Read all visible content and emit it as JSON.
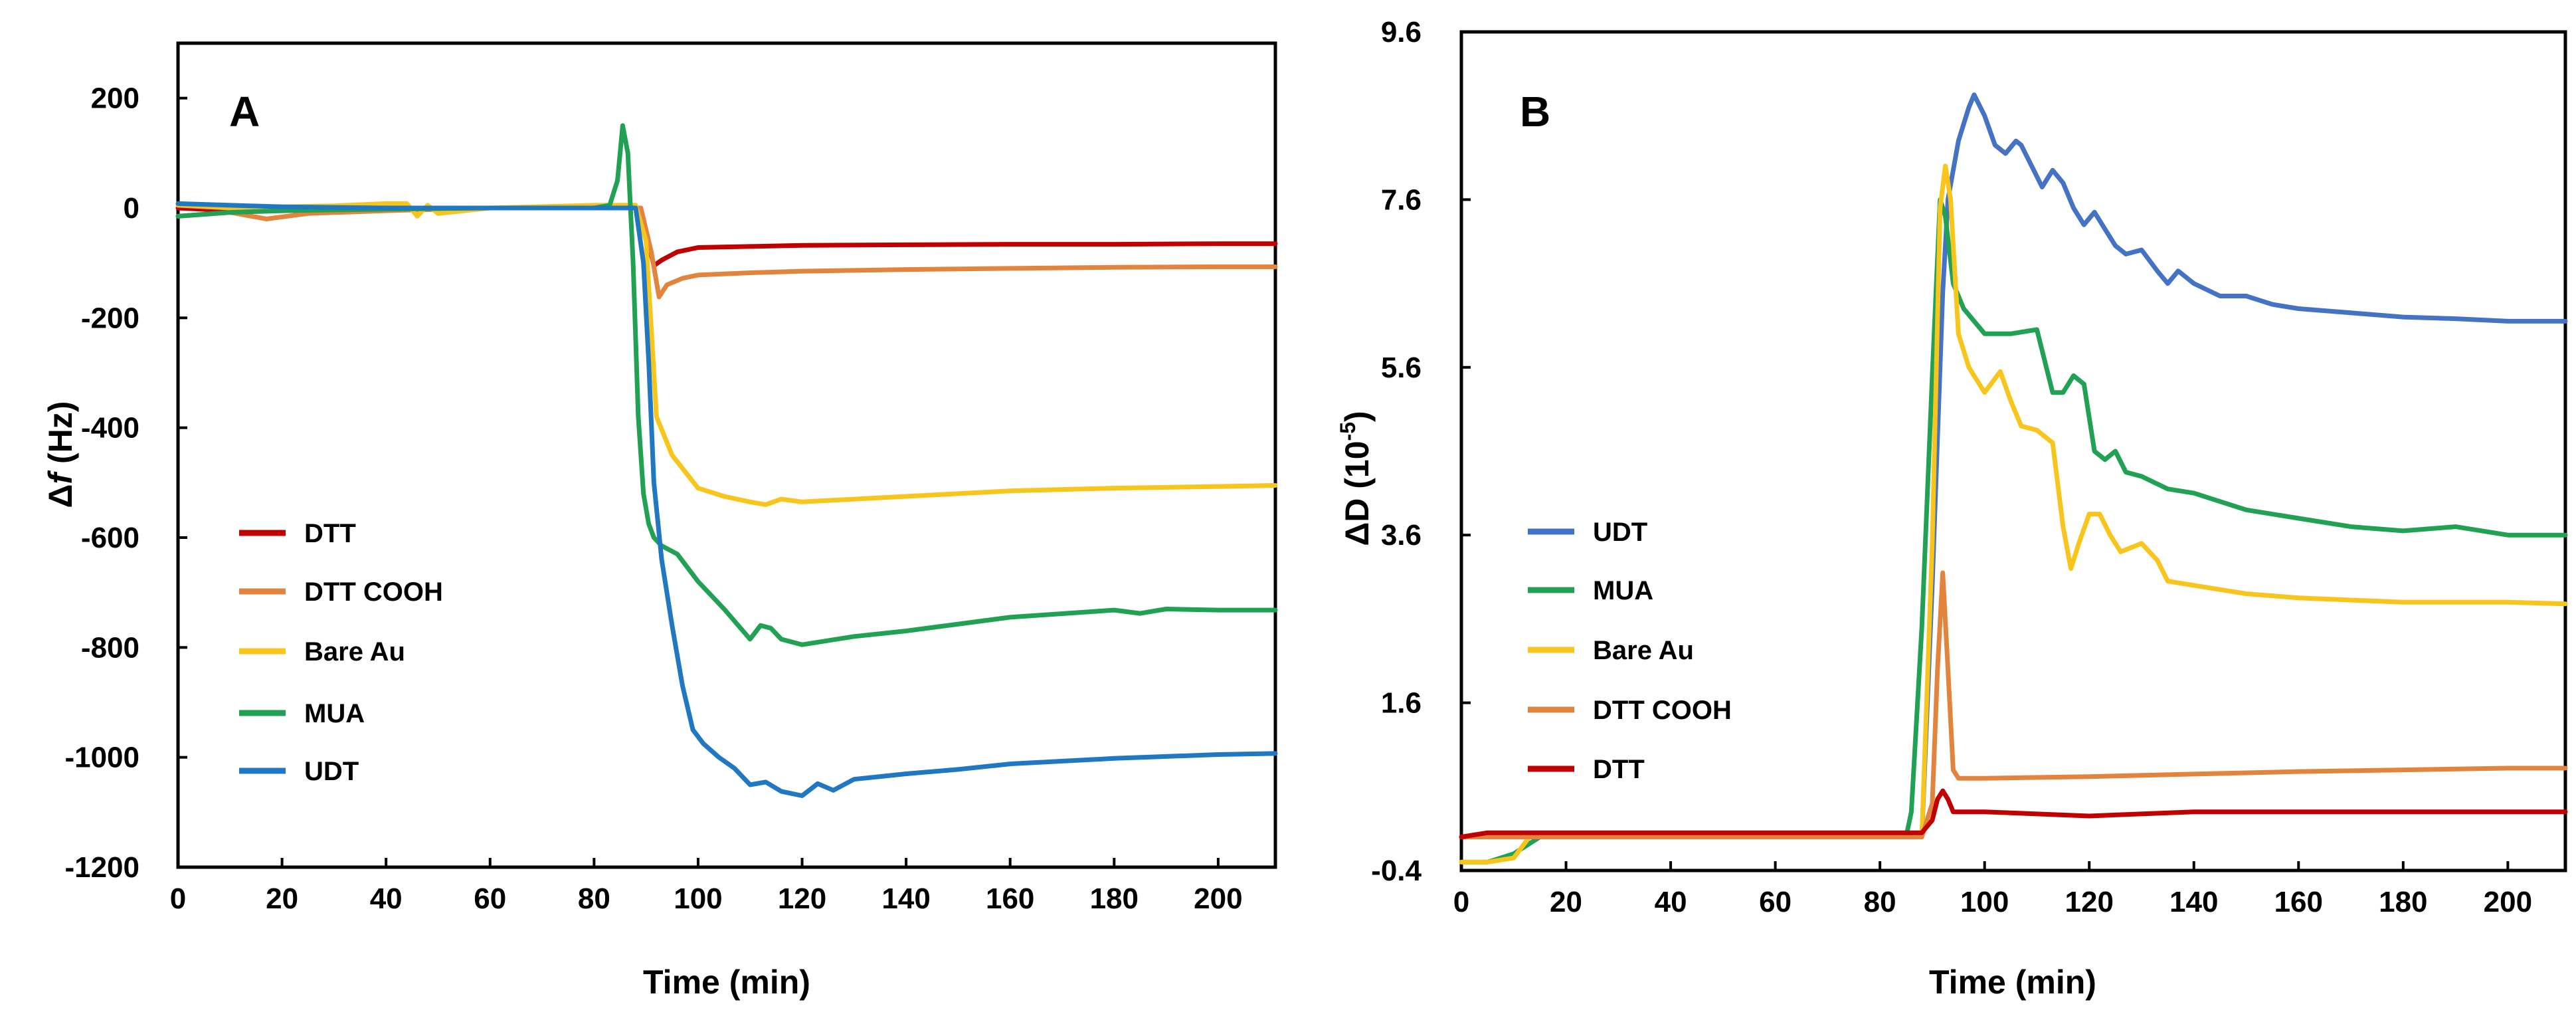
{
  "chart_data": [
    {
      "type": "line",
      "panel_label": "A",
      "xlabel": "Time (min)",
      "ylabel_prefix": "Δ",
      "ylabel_var": "f",
      "ylabel_suffix": " (Hz)",
      "xlim": [
        0,
        211
      ],
      "ylim": [
        -1200,
        300
      ],
      "xticks": [
        0,
        20,
        40,
        60,
        80,
        100,
        120,
        140,
        160,
        180,
        200
      ],
      "yticks": [
        -1200,
        -1000,
        -800,
        -600,
        -400,
        -200,
        0,
        200
      ],
      "xtick_labels": [
        "0",
        "20",
        "40",
        "60",
        "80",
        "100",
        "120",
        "140",
        "160",
        "180",
        "200"
      ],
      "ytick_labels": [
        "-1200",
        "-1000",
        "-800",
        "-600",
        "-400",
        "-200",
        "0",
        "200"
      ],
      "legend_position": "left-middle",
      "series": [
        {
          "name": "DTT",
          "color": "#C00000",
          "x": [
            0,
            10,
            20,
            40,
            60,
            80,
            88,
            90,
            91.5,
            93,
            96,
            100,
            110,
            120,
            140,
            160,
            180,
            200,
            211
          ],
          "y": [
            0,
            -5,
            -5,
            -2,
            0,
            0,
            0,
            -45,
            -105,
            -95,
            -80,
            -72,
            -70,
            -68,
            -67,
            -66,
            -66,
            -65,
            -65
          ]
        },
        {
          "name": "DTT COOH",
          "color": "#E3843E",
          "x": [
            0,
            10,
            17,
            25,
            40,
            60,
            80,
            89,
            91,
            92.5,
            94,
            97,
            100,
            110,
            120,
            140,
            160,
            180,
            200,
            211
          ],
          "y": [
            -15,
            -8,
            -20,
            -10,
            -5,
            0,
            0,
            0,
            -80,
            -162,
            -140,
            -128,
            -122,
            -118,
            -115,
            -112,
            -110,
            -108,
            -107,
            -107
          ]
        },
        {
          "name": "Bare Au",
          "color": "#F8C51C",
          "x": [
            0,
            10,
            20,
            30,
            40,
            44,
            46,
            48,
            50,
            60,
            80,
            88,
            90,
            92,
            95,
            100,
            105,
            110,
            113,
            116,
            120,
            130,
            140,
            160,
            180,
            200,
            211
          ],
          "y": [
            5,
            0,
            2,
            4,
            8,
            8,
            -15,
            5,
            -10,
            0,
            5,
            5,
            -60,
            -380,
            -450,
            -510,
            -525,
            -535,
            -540,
            -530,
            -535,
            -530,
            -525,
            -515,
            -510,
            -507,
            -505
          ]
        },
        {
          "name": "MUA",
          "color": "#21A153",
          "x": [
            0,
            10,
            20,
            40,
            60,
            80,
            83,
            84.5,
            85.5,
            86.5,
            87.5,
            88.5,
            89.5,
            90.5,
            91.5,
            93,
            96,
            100,
            105,
            110,
            112,
            114,
            116,
            120,
            130,
            140,
            160,
            180,
            185,
            190,
            200,
            211
          ],
          "y": [
            -15,
            -8,
            -5,
            -2,
            0,
            0,
            5,
            50,
            150,
            100,
            -100,
            -380,
            -520,
            -575,
            -600,
            -615,
            -630,
            -680,
            -730,
            -785,
            -760,
            -765,
            -785,
            -795,
            -780,
            -770,
            -745,
            -732,
            -738,
            -730,
            -732,
            -732
          ]
        },
        {
          "name": "UDT",
          "color": "#1F78C1",
          "x": [
            0,
            20,
            40,
            60,
            80,
            88,
            89.5,
            90.5,
            91.5,
            93,
            95,
            97,
            99,
            101,
            104,
            107,
            110,
            113,
            116,
            120,
            123,
            126,
            130,
            135,
            140,
            150,
            160,
            180,
            200,
            211
          ],
          "y": [
            8,
            2,
            0,
            0,
            0,
            0,
            -100,
            -280,
            -500,
            -640,
            -760,
            -870,
            -950,
            -975,
            -1000,
            -1020,
            -1050,
            -1045,
            -1062,
            -1070,
            -1048,
            -1060,
            -1040,
            -1035,
            -1030,
            -1022,
            -1012,
            -1002,
            -995,
            -993
          ]
        }
      ],
      "legend_order": [
        "DTT",
        "DTT COOH",
        "Bare Au",
        "MUA",
        "UDT"
      ]
    },
    {
      "type": "line",
      "panel_label": "B",
      "xlabel": "Time (min)",
      "ylabel_base": "ΔD (10",
      "ylabel_sup": "-5",
      "ylabel_close": ")",
      "xlim": [
        0,
        211
      ],
      "ylim": [
        -0.4,
        9.6
      ],
      "xticks": [
        0,
        20,
        40,
        60,
        80,
        100,
        120,
        140,
        160,
        180,
        200
      ],
      "yticks": [
        -0.4,
        1.6,
        3.6,
        5.6,
        7.6,
        9.6
      ],
      "xtick_labels": [
        "0",
        "20",
        "40",
        "60",
        "80",
        "100",
        "120",
        "140",
        "160",
        "180",
        "200"
      ],
      "ytick_labels": [
        "-0.4",
        "1.6",
        "3.6",
        "5.6",
        "7.6",
        "9.6"
      ],
      "legend_position": "left-middle",
      "series": [
        {
          "name": "UDT",
          "color": "#4472C4",
          "x": [
            0,
            20,
            40,
            60,
            80,
            88,
            90,
            92,
            93,
            95,
            97,
            98,
            100,
            102,
            104,
            106,
            107,
            109,
            111,
            113,
            115,
            117,
            119,
            121,
            123,
            125,
            127,
            130,
            133,
            135,
            137,
            140,
            145,
            150,
            155,
            160,
            170,
            180,
            190,
            200,
            211
          ],
          "y": [
            0,
            0,
            0,
            0,
            0,
            0,
            3,
            6.5,
            7.6,
            8.3,
            8.7,
            8.85,
            8.6,
            8.25,
            8.15,
            8.3,
            8.25,
            8.0,
            7.75,
            7.95,
            7.8,
            7.5,
            7.3,
            7.45,
            7.25,
            7.05,
            6.95,
            7.0,
            6.75,
            6.6,
            6.75,
            6.6,
            6.45,
            6.45,
            6.35,
            6.3,
            6.25,
            6.2,
            6.18,
            6.15,
            6.15
          ]
        },
        {
          "name": "MUA",
          "color": "#21A153",
          "x": [
            0,
            5,
            10,
            15,
            20,
            40,
            60,
            80,
            85,
            86,
            88,
            90,
            91.5,
            92.5,
            94,
            96,
            100,
            105,
            110,
            113,
            115,
            117,
            119,
            121,
            123,
            125,
            127,
            130,
            135,
            140,
            150,
            160,
            170,
            180,
            190,
            200,
            211
          ],
          "y": [
            -0.3,
            -0.3,
            -0.2,
            0,
            0,
            0,
            0,
            0,
            0,
            0.3,
            2.5,
            5.5,
            7.6,
            7.4,
            6.6,
            6.3,
            6.0,
            6.0,
            6.05,
            5.3,
            5.3,
            5.5,
            5.4,
            4.6,
            4.5,
            4.6,
            4.35,
            4.3,
            4.15,
            4.1,
            3.9,
            3.8,
            3.7,
            3.65,
            3.7,
            3.6,
            3.6
          ]
        },
        {
          "name": "Bare Au",
          "color": "#F8C51C",
          "x": [
            0,
            5,
            10,
            13,
            16,
            20,
            40,
            60,
            80,
            88,
            90,
            91.5,
            92.5,
            93.5,
            95,
            97,
            100,
            103,
            105,
            107,
            110,
            113,
            115,
            116.5,
            118,
            120,
            122,
            124,
            126,
            130,
            133,
            135,
            140,
            150,
            160,
            180,
            200,
            211
          ],
          "y": [
            -0.3,
            -0.3,
            -0.25,
            0,
            0,
            0,
            0,
            0,
            0,
            0,
            3.5,
            7.5,
            8.0,
            7.6,
            6.0,
            5.6,
            5.3,
            5.55,
            5.2,
            4.9,
            4.85,
            4.7,
            3.7,
            3.2,
            3.5,
            3.85,
            3.85,
            3.6,
            3.4,
            3.5,
            3.3,
            3.05,
            3.0,
            2.9,
            2.85,
            2.8,
            2.8,
            2.78
          ]
        },
        {
          "name": "DTT COOH",
          "color": "#E3843E",
          "x": [
            0,
            5,
            10,
            20,
            40,
            60,
            80,
            88,
            90,
            91,
            92,
            93,
            94,
            95,
            100,
            120,
            140,
            160,
            180,
            200,
            211
          ],
          "y": [
            0,
            0,
            0,
            0,
            0,
            0,
            0,
            0,
            0.4,
            2.0,
            3.15,
            2.0,
            0.8,
            0.7,
            0.7,
            0.72,
            0.75,
            0.78,
            0.8,
            0.82,
            0.82
          ]
        },
        {
          "name": "DTT",
          "color": "#C00000",
          "x": [
            0,
            5,
            10,
            20,
            40,
            60,
            70,
            80,
            88,
            90,
            91,
            92,
            93,
            94,
            96,
            100,
            120,
            140,
            160,
            180,
            200,
            211
          ],
          "y": [
            0,
            0.05,
            0.05,
            0.05,
            0.05,
            0.05,
            0.05,
            0.05,
            0.05,
            0.2,
            0.45,
            0.55,
            0.45,
            0.3,
            0.3,
            0.3,
            0.25,
            0.3,
            0.3,
            0.3,
            0.3,
            0.3
          ]
        }
      ],
      "legend_order": [
        "UDT",
        "MUA",
        "Bare Au",
        "DTT COOH",
        "DTT"
      ]
    }
  ]
}
